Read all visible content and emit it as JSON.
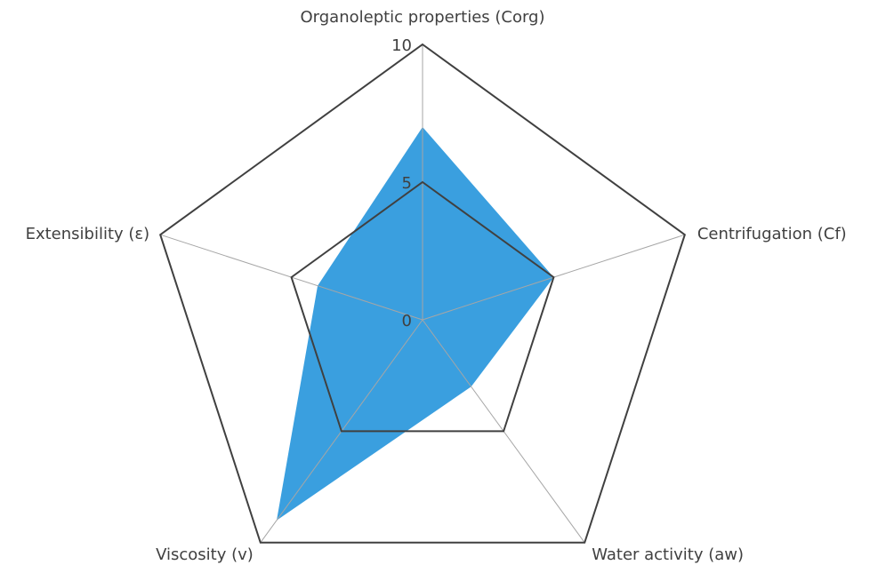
{
  "chart_data": {
    "type": "radar",
    "categories": [
      "Organoleptic properties (Corg)",
      "Centrifugation (Cf)",
      "Water activity (aw)",
      "Viscosity (v)",
      "Extensibility (ε)"
    ],
    "series": [
      {
        "color": "#3a9fdf",
        "values": [
          7,
          5,
          3,
          9,
          4
        ]
      }
    ],
    "ylim": [
      0,
      10
    ],
    "yticks": [
      0,
      5,
      10
    ],
    "grid": true
  }
}
